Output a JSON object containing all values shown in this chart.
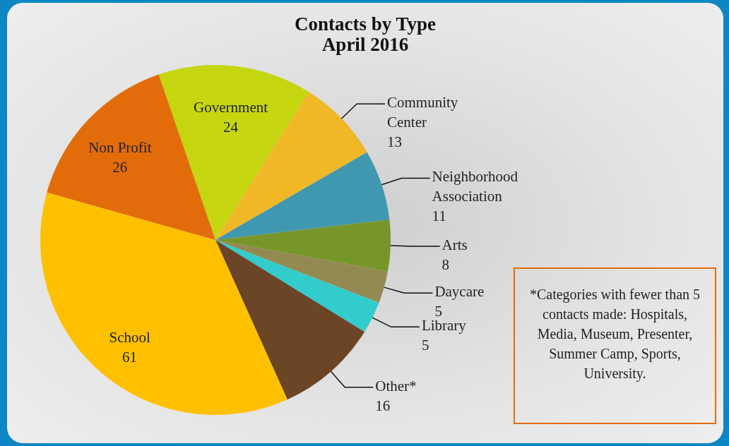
{
  "chart_data": {
    "type": "pie",
    "title": "Contacts by Type",
    "subtitle": "April 2016",
    "categories": [
      "Government",
      "Community Center",
      "Neighborhood Association",
      "Arts",
      "Daycare",
      "Library",
      "Other*",
      "School",
      "Non Profit"
    ],
    "values": [
      24,
      13,
      11,
      8,
      5,
      5,
      16,
      61,
      26
    ],
    "colors": [
      "#c5d611",
      "#f0b827",
      "#4097b0",
      "#76962a",
      "#938a52",
      "#33cccc",
      "#6c4527",
      "#ffc000",
      "#e36c0a"
    ],
    "data_labels": true,
    "annotations": [
      "*Categories with fewer than 5 contacts made: Hospitals, Media, Museum, Presenter, Summer Camp, Sports, University."
    ]
  }
}
